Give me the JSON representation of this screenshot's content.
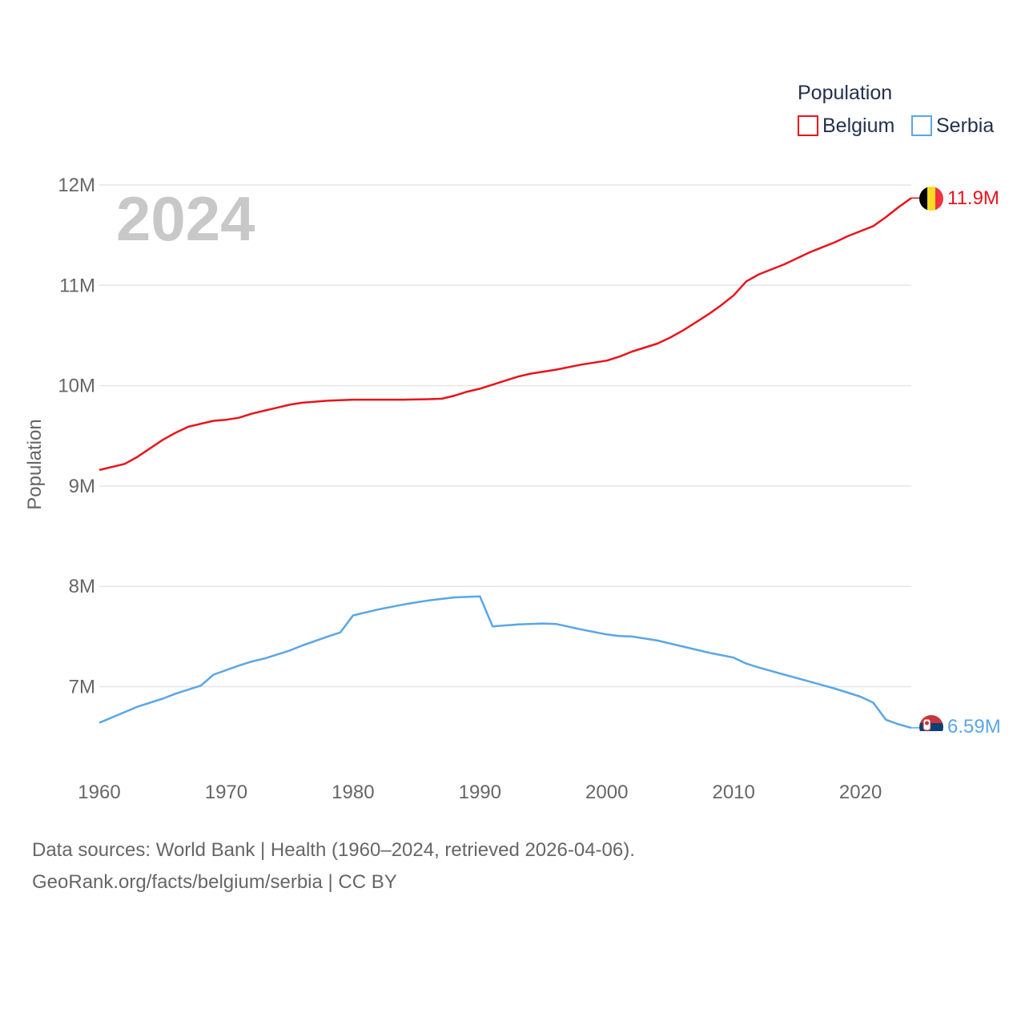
{
  "chart_data": {
    "type": "line",
    "title": "Population",
    "year_label": "2024",
    "xlabel": "",
    "ylabel": "Population",
    "xlim": [
      1960,
      2024
    ],
    "ylim": [
      6350000,
      12000000
    ],
    "x_ticks": [
      1960,
      1970,
      1980,
      1990,
      2000,
      2010,
      2020
    ],
    "y_ticks": [
      {
        "value": 7000000,
        "label": "7M"
      },
      {
        "value": 8000000,
        "label": "8M"
      },
      {
        "value": 9000000,
        "label": "9M"
      },
      {
        "value": 10000000,
        "label": "10M"
      },
      {
        "value": 11000000,
        "label": "11M"
      },
      {
        "value": 12000000,
        "label": "12M"
      }
    ],
    "legend": {
      "title": "Population",
      "position": "top-right"
    },
    "series": [
      {
        "name": "Belgium",
        "color": "#e8141a",
        "end_label": "11.9M",
        "flag_icon": "belgium-flag-icon",
        "x": [
          1960,
          1962,
          1963,
          1965,
          1966,
          1967,
          1968,
          1969,
          1970,
          1971,
          1972,
          1973,
          1974,
          1975,
          1976,
          1978,
          1980,
          1982,
          1984,
          1986,
          1987,
          1988,
          1989,
          1990,
          1992,
          1993,
          1994,
          1996,
          1998,
          2000,
          2001,
          2002,
          2004,
          2005,
          2006,
          2007,
          2008,
          2009,
          2010,
          2011,
          2012,
          2014,
          2015,
          2016,
          2017,
          2018,
          2019,
          2020,
          2021,
          2022,
          2023,
          2024
        ],
        "values": [
          9160000,
          9220000,
          9290000,
          9460000,
          9530000,
          9590000,
          9620000,
          9650000,
          9660000,
          9680000,
          9720000,
          9750000,
          9780000,
          9810000,
          9830000,
          9850000,
          9860000,
          9860000,
          9860000,
          9865000,
          9870000,
          9900000,
          9940000,
          9970000,
          10050000,
          10090000,
          10120000,
          10160000,
          10210000,
          10250000,
          10290000,
          10340000,
          10420000,
          10480000,
          10550000,
          10630000,
          10710000,
          10800000,
          10900000,
          11040000,
          11110000,
          11210000,
          11270000,
          11330000,
          11380000,
          11430000,
          11490000,
          11540000,
          11590000,
          11680000,
          11780000,
          11870000
        ]
      },
      {
        "name": "Serbia",
        "color": "#5aa6e6",
        "end_label": "6.59M",
        "flag_icon": "serbia-flag-icon",
        "x": [
          1960,
          1963,
          1965,
          1966,
          1968,
          1969,
          1971,
          1972,
          1973,
          1975,
          1976,
          1978,
          1979,
          1980,
          1982,
          1984,
          1986,
          1988,
          1990,
          1991,
          1993,
          1995,
          1996,
          1998,
          2000,
          2001,
          2002,
          2004,
          2006,
          2008,
          2010,
          2011,
          2012,
          2014,
          2016,
          2018,
          2019,
          2020,
          2021,
          2022,
          2023,
          2024
        ],
        "values": [
          6640000,
          6800000,
          6880000,
          6930000,
          7010000,
          7120000,
          7210000,
          7250000,
          7280000,
          7360000,
          7410000,
          7500000,
          7540000,
          7710000,
          7770000,
          7820000,
          7860000,
          7890000,
          7900000,
          7600000,
          7620000,
          7630000,
          7625000,
          7570000,
          7520000,
          7505000,
          7500000,
          7460000,
          7400000,
          7340000,
          7290000,
          7230000,
          7190000,
          7120000,
          7050000,
          6980000,
          6940000,
          6900000,
          6840000,
          6670000,
          6625000,
          6590000
        ]
      }
    ]
  },
  "sources": {
    "line1": "Data sources: World Bank | Health (1960–2024, retrieved 2026-04-06).",
    "line2": "GeoRank.org/facts/belgium/serbia | CC BY"
  }
}
